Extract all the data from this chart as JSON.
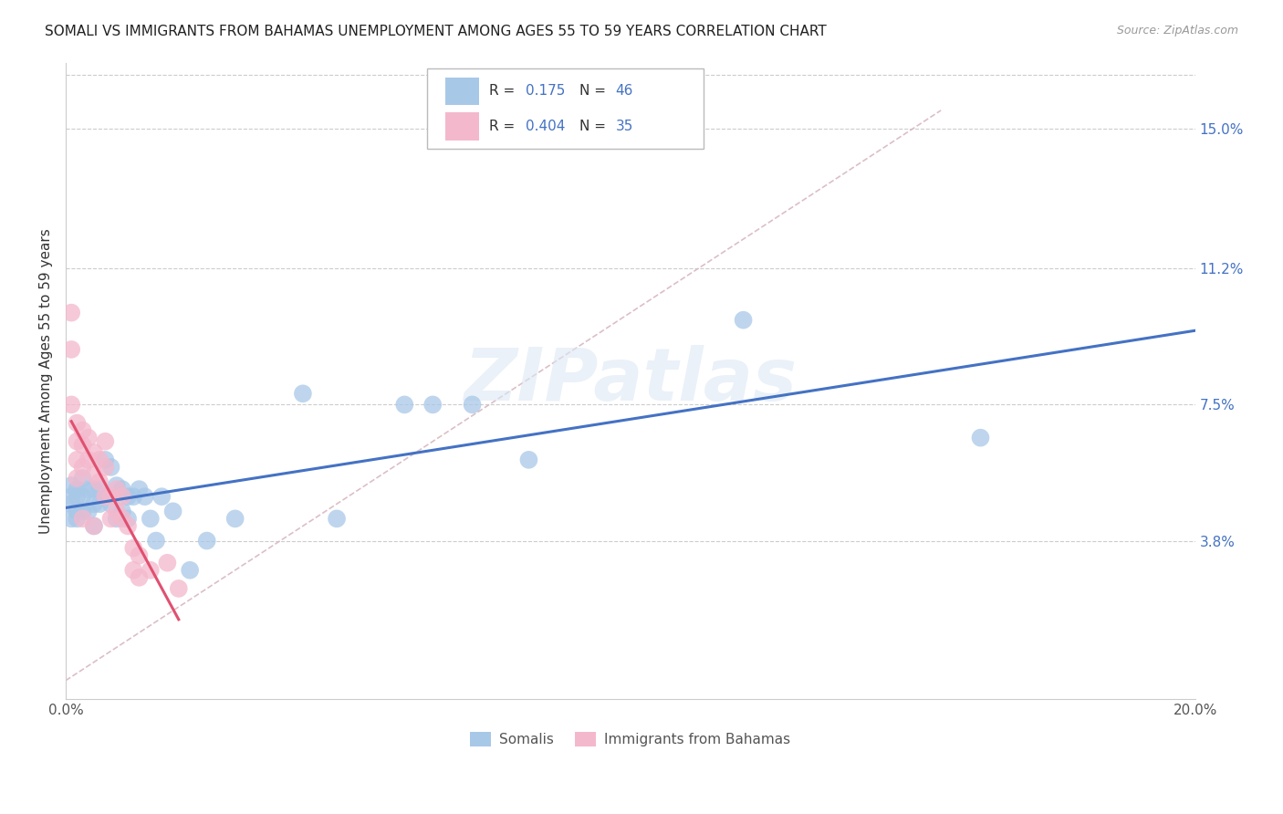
{
  "title": "SOMALI VS IMMIGRANTS FROM BAHAMAS UNEMPLOYMENT AMONG AGES 55 TO 59 YEARS CORRELATION CHART",
  "source": "Source: ZipAtlas.com",
  "ylabel": "Unemployment Among Ages 55 to 59 years",
  "xlim": [
    0.0,
    0.2
  ],
  "ylim": [
    -0.005,
    0.168
  ],
  "x_ticks": [
    0.0,
    0.02,
    0.04,
    0.06,
    0.08,
    0.1,
    0.12,
    0.14,
    0.16,
    0.18,
    0.2
  ],
  "y_tick_labels_right": [
    "3.8%",
    "7.5%",
    "11.2%",
    "15.0%"
  ],
  "y_tick_values_right": [
    0.038,
    0.075,
    0.112,
    0.15
  ],
  "somali_color": "#a8c8e8",
  "bahamas_color": "#f4b8cc",
  "somali_line_color": "#4472c4",
  "bahamas_line_color": "#e05070",
  "diagonal_line_color": "#d8b8c0",
  "background_color": "#ffffff",
  "watermark_text": "ZIPatlas",
  "somali_x": [
    0.001,
    0.001,
    0.001,
    0.001,
    0.002,
    0.002,
    0.002,
    0.002,
    0.003,
    0.003,
    0.003,
    0.004,
    0.004,
    0.005,
    0.005,
    0.005,
    0.006,
    0.006,
    0.007,
    0.007,
    0.008,
    0.008,
    0.009,
    0.009,
    0.01,
    0.01,
    0.011,
    0.011,
    0.012,
    0.013,
    0.014,
    0.015,
    0.016,
    0.017,
    0.019,
    0.022,
    0.025,
    0.03,
    0.042,
    0.048,
    0.06,
    0.065,
    0.072,
    0.082,
    0.12,
    0.162
  ],
  "somali_y": [
    0.053,
    0.05,
    0.048,
    0.044,
    0.052,
    0.05,
    0.046,
    0.044,
    0.055,
    0.05,
    0.046,
    0.052,
    0.046,
    0.052,
    0.048,
    0.042,
    0.052,
    0.048,
    0.06,
    0.05,
    0.058,
    0.048,
    0.053,
    0.044,
    0.052,
    0.046,
    0.05,
    0.044,
    0.05,
    0.052,
    0.05,
    0.044,
    0.038,
    0.05,
    0.046,
    0.03,
    0.038,
    0.044,
    0.078,
    0.044,
    0.075,
    0.075,
    0.075,
    0.06,
    0.098,
    0.066
  ],
  "bahamas_x": [
    0.001,
    0.001,
    0.001,
    0.002,
    0.002,
    0.002,
    0.002,
    0.003,
    0.003,
    0.003,
    0.003,
    0.004,
    0.004,
    0.005,
    0.005,
    0.005,
    0.006,
    0.006,
    0.007,
    0.007,
    0.007,
    0.008,
    0.008,
    0.009,
    0.009,
    0.01,
    0.01,
    0.011,
    0.012,
    0.012,
    0.013,
    0.013,
    0.015,
    0.018,
    0.02
  ],
  "bahamas_y": [
    0.1,
    0.09,
    0.075,
    0.07,
    0.065,
    0.06,
    0.055,
    0.068,
    0.064,
    0.058,
    0.044,
    0.066,
    0.06,
    0.062,
    0.056,
    0.042,
    0.06,
    0.054,
    0.065,
    0.058,
    0.05,
    0.05,
    0.044,
    0.052,
    0.046,
    0.05,
    0.044,
    0.042,
    0.036,
    0.03,
    0.034,
    0.028,
    0.03,
    0.032,
    0.025
  ]
}
